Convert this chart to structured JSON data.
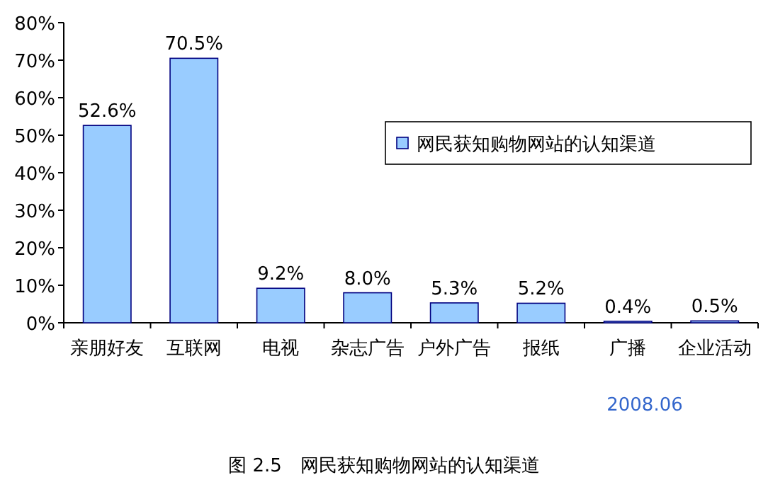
{
  "chart_data": {
    "type": "bar",
    "categories": [
      "亲朋好友",
      "互联网",
      "电视",
      "杂志广告",
      "户外广告",
      "报纸",
      "广播",
      "企业活动"
    ],
    "series": [
      {
        "name": "网民获知购物网站的认知渠道",
        "color": "#99ccff",
        "values": [
          52.6,
          70.5,
          9.2,
          8.0,
          5.3,
          5.2,
          0.4,
          0.5
        ],
        "value_labels": [
          "52.6%",
          "70.5%",
          "9.2%",
          "8.0%",
          "5.3%",
          "5.2%",
          "0.4%",
          "0.5%"
        ]
      }
    ],
    "ylim": [
      0,
      80
    ],
    "yticks": [
      {
        "value": 0,
        "label": "0%"
      },
      {
        "value": 10,
        "label": "10%"
      },
      {
        "value": 20,
        "label": "20%"
      },
      {
        "value": 30,
        "label": "30%"
      },
      {
        "value": 40,
        "label": "40%"
      },
      {
        "value": 50,
        "label": "50%"
      },
      {
        "value": 60,
        "label": "60%"
      },
      {
        "value": 70,
        "label": "70%"
      },
      {
        "value": 80,
        "label": "80%"
      }
    ],
    "legend": "right",
    "grid": false,
    "annotations": [
      "2008.06",
      "图 2.5　网民获知购物网站的认知渠道"
    ]
  }
}
